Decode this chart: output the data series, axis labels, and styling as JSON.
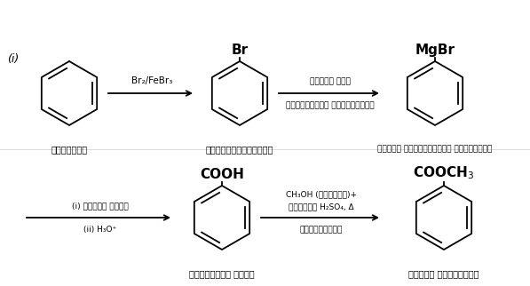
{
  "bg_color": "#ffffff",
  "line_color": "#000000",
  "font_size_label": 7.0,
  "font_size_formula": 9.0,
  "font_size_arrow_label": 6.5,
  "font_size_roman": 9.0,
  "labels": {
    "benzene": "बेन्जीन",
    "bromobenzene": "ब्रोमोबेन्जीन",
    "grignard": "फेनिल मैग्नीशियम ब्रोमाइड",
    "benzoic": "बेन्जोइक अम्ल",
    "methyl_benzoate": "मेथिल बेन्जोएट"
  },
  "arrow1_label": "Br₂/FeBr₃",
  "arrow2_label_top": "शुष्क ईथर",
  "arrow2_label_bot": "ग्रीन्यार अभिक्रिया",
  "arrow3_label_top": "(i) शुष्क बर्फ",
  "arrow3_label_bot": "(ii) H₃O⁺",
  "arrow4_label_top": "CH₃OH (आधिक्य)+",
  "arrow4_label_mid": "सांद्र H₂SO₄, Δ",
  "arrow4_label_bot": "एस्टरीकरण"
}
